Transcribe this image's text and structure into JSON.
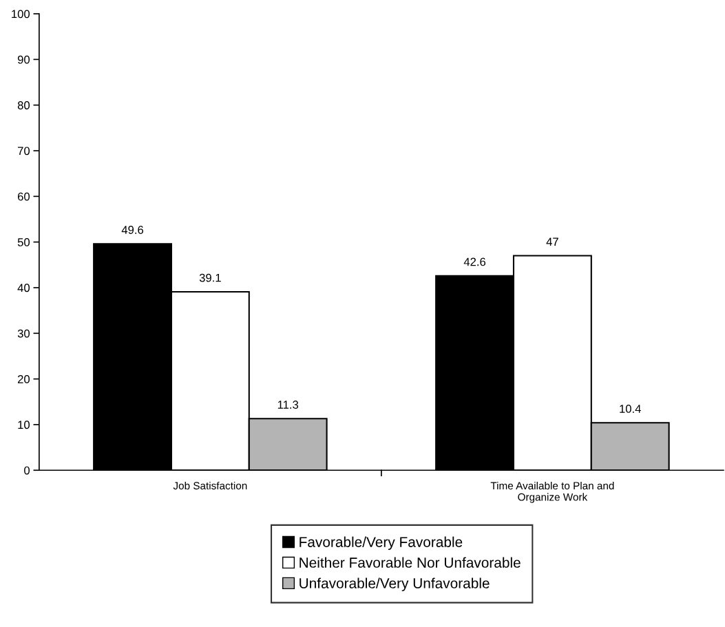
{
  "chart_data": {
    "type": "bar",
    "categories": [
      "Job Satisfaction",
      "Time Available to Plan and\nOrganize Work"
    ],
    "series": [
      {
        "name": "Favorable/Very Favorable",
        "color": "#000000",
        "values": [
          49.6,
          42.6
        ]
      },
      {
        "name": "Neither Favorable Nor Unfavorable",
        "color": "#ffffff",
        "values": [
          39.1,
          47
        ]
      },
      {
        "name": "Unfavorable/Very Unfavorable",
        "color": "#b4b4b4",
        "values": [
          11.3,
          10.4
        ]
      }
    ],
    "ylim": [
      0,
      100
    ],
    "yticks": [
      0,
      10,
      20,
      30,
      40,
      50,
      60,
      70,
      80,
      90,
      100
    ],
    "data_labels": true,
    "grid": false,
    "legend": "bottom"
  }
}
